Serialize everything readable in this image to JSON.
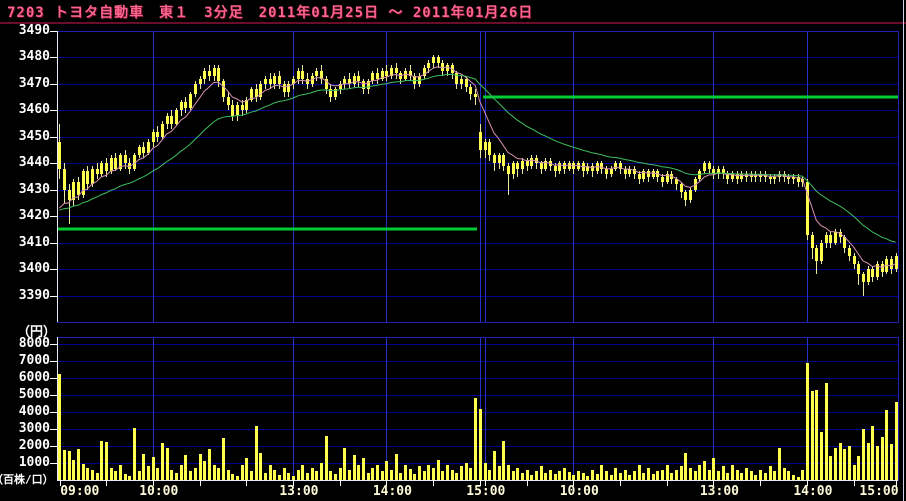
{
  "header": {
    "title": "7203 トヨタ自動車　東１　3分足　2011年01月25日 ～ 2011年01月26日"
  },
  "price_panel": {
    "unit_label": "（円）",
    "y_ticks": [
      3490,
      3480,
      3470,
      3460,
      3450,
      3440,
      3430,
      3420,
      3410,
      3400,
      3390
    ],
    "y_max": 3490,
    "y_min": 3380,
    "ref_lines": [
      {
        "session": "2011-01-25",
        "value": 3415
      },
      {
        "session": "2011-01-26",
        "value": 3465
      }
    ]
  },
  "volume_panel": {
    "unit_label": "（百株/口）",
    "y_ticks": [
      8000,
      7000,
      6000,
      5000,
      4000,
      3000,
      2000,
      1000
    ],
    "y_max": 8400
  },
  "x_axis": {
    "labels": [
      {
        "text": "09:00",
        "bar": 0
      },
      {
        "text": "10:00",
        "bar": 20
      },
      {
        "text": "13:00",
        "bar": 50
      },
      {
        "text": "14:00",
        "bar": 70
      },
      {
        "text": "15:00",
        "bar": 90
      },
      {
        "text": "10:00",
        "bar": 110
      },
      {
        "text": "13:00",
        "bar": 140
      },
      {
        "text": "14:00",
        "bar": 160
      },
      {
        "text": "15:00",
        "bar": 180
      }
    ],
    "minor_tick_bars": [
      10,
      30,
      40,
      60,
      80,
      100,
      120,
      130,
      150,
      170
    ],
    "day2_open_bar": 91
  },
  "colors": {
    "background": "#000000",
    "title_text": "#ff6490",
    "title_rule": "#6b0d2a",
    "axis_text": "#ffffff",
    "time_text": "#fffbd8",
    "grid_h": "#00008f",
    "grid_v": "#2431c8",
    "frame": "#2020b0",
    "axis_line": "#e8e8f8",
    "candle_body": "#ffff4d",
    "candle_wick": "#e8e8a0",
    "volume_bar": "#ffff4d",
    "ref_line": "#00cc33",
    "ma_fast": "#d890b0",
    "ma_slow": "#3fbf5f"
  },
  "chart_data": {
    "type": "candlestick+volume",
    "symbol": "7203",
    "name": "トヨタ自動車",
    "market": "東１",
    "interval": "3分足",
    "date_range": "2011年01月25日～2011年01月26日",
    "bars_per_day": 90,
    "sessions": [
      "09:00-11:00",
      "12:30-15:00"
    ],
    "price_axis": {
      "min": 3380,
      "max": 3490,
      "grid_step": 10
    },
    "volume_axis": {
      "min": 0,
      "max": 8400,
      "grid_step": 1000
    },
    "ma_lines": [
      {
        "name": "ma-fast",
        "type": "ema",
        "period": 7,
        "seed": 3418,
        "color": "#d890b0"
      },
      {
        "name": "ma-slow",
        "type": "ema",
        "period": 26,
        "seed": 3421,
        "color": "#3fbf5f"
      }
    ],
    "candles": [
      [
        3448,
        3455,
        3434,
        3438
      ],
      [
        3438,
        3440,
        3425,
        3430
      ],
      [
        3430,
        3432,
        3417,
        3426
      ],
      [
        3426,
        3434,
        3424,
        3433
      ],
      [
        3433,
        3435,
        3426,
        3428
      ],
      [
        3428,
        3438,
        3427,
        3437
      ],
      [
        3437,
        3439,
        3430,
        3432
      ],
      [
        3432,
        3439,
        3431,
        3438
      ],
      [
        3438,
        3440,
        3434,
        3436
      ],
      [
        3436,
        3441,
        3435,
        3440
      ],
      [
        3440,
        3442,
        3435,
        3437
      ],
      [
        3437,
        3443,
        3436,
        3442
      ],
      [
        3442,
        3444,
        3437,
        3438
      ],
      [
        3438,
        3444,
        3437,
        3443
      ],
      [
        3443,
        3445,
        3438,
        3440
      ],
      [
        3440,
        3442,
        3436,
        3438
      ],
      [
        3438,
        3444,
        3437,
        3443
      ],
      [
        3443,
        3447,
        3442,
        3446
      ],
      [
        3446,
        3448,
        3442,
        3444
      ],
      [
        3444,
        3449,
        3443,
        3448
      ],
      [
        3448,
        3453,
        3446,
        3452
      ],
      [
        3452,
        3454,
        3448,
        3450
      ],
      [
        3450,
        3456,
        3449,
        3455
      ],
      [
        3455,
        3459,
        3453,
        3458
      ],
      [
        3458,
        3460,
        3453,
        3455
      ],
      [
        3455,
        3461,
        3454,
        3460
      ],
      [
        3460,
        3464,
        3458,
        3463
      ],
      [
        3463,
        3465,
        3459,
        3461
      ],
      [
        3461,
        3467,
        3460,
        3466
      ],
      [
        3466,
        3471,
        3465,
        3470
      ],
      [
        3470,
        3473,
        3468,
        3472
      ],
      [
        3472,
        3476,
        3470,
        3475
      ],
      [
        3475,
        3477,
        3471,
        3473
      ],
      [
        3473,
        3477,
        3471,
        3476
      ],
      [
        3476,
        3477,
        3469,
        3471
      ],
      [
        3471,
        3472,
        3463,
        3465
      ],
      [
        3465,
        3467,
        3460,
        3462
      ],
      [
        3462,
        3464,
        3456,
        3458
      ],
      [
        3458,
        3463,
        3456,
        3462
      ],
      [
        3462,
        3464,
        3458,
        3460
      ],
      [
        3460,
        3465,
        3459,
        3464
      ],
      [
        3464,
        3469,
        3463,
        3468
      ],
      [
        3468,
        3470,
        3463,
        3465
      ],
      [
        3465,
        3471,
        3464,
        3470
      ],
      [
        3470,
        3473,
        3468,
        3472
      ],
      [
        3472,
        3474,
        3468,
        3470
      ],
      [
        3470,
        3474,
        3468,
        3473
      ],
      [
        3473,
        3475,
        3468,
        3470
      ],
      [
        3470,
        3471,
        3465,
        3467
      ],
      [
        3467,
        3471,
        3465,
        3470
      ],
      [
        3470,
        3473,
        3468,
        3472
      ],
      [
        3472,
        3476,
        3470,
        3475
      ],
      [
        3475,
        3477,
        3470,
        3472
      ],
      [
        3472,
        3474,
        3468,
        3470
      ],
      [
        3470,
        3474,
        3469,
        3473
      ],
      [
        3473,
        3476,
        3471,
        3475
      ],
      [
        3475,
        3477,
        3470,
        3472
      ],
      [
        3472,
        3473,
        3466,
        3468
      ],
      [
        3468,
        3470,
        3463,
        3465
      ],
      [
        3465,
        3469,
        3464,
        3468
      ],
      [
        3468,
        3471,
        3466,
        3470
      ],
      [
        3470,
        3473,
        3468,
        3472
      ],
      [
        3472,
        3474,
        3468,
        3470
      ],
      [
        3470,
        3474,
        3469,
        3473
      ],
      [
        3473,
        3475,
        3469,
        3471
      ],
      [
        3471,
        3472,
        3466,
        3468
      ],
      [
        3468,
        3472,
        3466,
        3471
      ],
      [
        3471,
        3475,
        3470,
        3474
      ],
      [
        3474,
        3476,
        3470,
        3472
      ],
      [
        3472,
        3476,
        3471,
        3475
      ],
      [
        3475,
        3477,
        3471,
        3473
      ],
      [
        3473,
        3477,
        3472,
        3476
      ],
      [
        3476,
        3478,
        3472,
        3474
      ],
      [
        3474,
        3475,
        3470,
        3472
      ],
      [
        3472,
        3476,
        3471,
        3475
      ],
      [
        3475,
        3477,
        3471,
        3473
      ],
      [
        3473,
        3474,
        3468,
        3470
      ],
      [
        3470,
        3474,
        3469,
        3473
      ],
      [
        3473,
        3477,
        3472,
        3476
      ],
      [
        3476,
        3479,
        3474,
        3478
      ],
      [
        3478,
        3481,
        3476,
        3480
      ],
      [
        3480,
        3481,
        3476,
        3478
      ],
      [
        3478,
        3479,
        3473,
        3475
      ],
      [
        3475,
        3478,
        3473,
        3477
      ],
      [
        3477,
        3478,
        3472,
        3474
      ],
      [
        3474,
        3475,
        3468,
        3470
      ],
      [
        3470,
        3473,
        3468,
        3472
      ],
      [
        3472,
        3473,
        3467,
        3469
      ],
      [
        3469,
        3470,
        3464,
        3466
      ],
      [
        3466,
        3468,
        3462,
        3465
      ],
      [
        3452,
        3455,
        3442,
        3445
      ],
      [
        3445,
        3449,
        3442,
        3448
      ],
      [
        3448,
        3449,
        3441,
        3443
      ],
      [
        3443,
        3444,
        3437,
        3440
      ],
      [
        3440,
        3444,
        3438,
        3443
      ],
      [
        3443,
        3444,
        3437,
        3439
      ],
      [
        3439,
        3440,
        3428,
        3436
      ],
      [
        3436,
        3441,
        3434,
        3440
      ],
      [
        3440,
        3441,
        3435,
        3438
      ],
      [
        3438,
        3442,
        3436,
        3441
      ],
      [
        3441,
        3442,
        3437,
        3439
      ],
      [
        3439,
        3443,
        3438,
        3442
      ],
      [
        3442,
        3443,
        3438,
        3440
      ],
      [
        3440,
        3441,
        3436,
        3438
      ],
      [
        3438,
        3442,
        3437,
        3441
      ],
      [
        3441,
        3442,
        3437,
        3439
      ],
      [
        3439,
        3440,
        3435,
        3437
      ],
      [
        3437,
        3441,
        3436,
        3440
      ],
      [
        3440,
        3441,
        3436,
        3438
      ],
      [
        3438,
        3441,
        3437,
        3440
      ],
      [
        3440,
        3441,
        3436,
        3438
      ],
      [
        3438,
        3441,
        3437,
        3440
      ],
      [
        3440,
        3441,
        3435,
        3437
      ],
      [
        3437,
        3440,
        3436,
        3439
      ],
      [
        3439,
        3440,
        3435,
        3437
      ],
      [
        3437,
        3441,
        3436,
        3440
      ],
      [
        3440,
        3441,
        3436,
        3438
      ],
      [
        3438,
        3439,
        3434,
        3436
      ],
      [
        3436,
        3439,
        3435,
        3438
      ],
      [
        3438,
        3441,
        3437,
        3440
      ],
      [
        3440,
        3441,
        3436,
        3438
      ],
      [
        3438,
        3439,
        3434,
        3436
      ],
      [
        3436,
        3439,
        3435,
        3438
      ],
      [
        3438,
        3439,
        3434,
        3436
      ],
      [
        3436,
        3437,
        3432,
        3434
      ],
      [
        3434,
        3438,
        3433,
        3437
      ],
      [
        3437,
        3438,
        3433,
        3435
      ],
      [
        3435,
        3438,
        3434,
        3437
      ],
      [
        3437,
        3438,
        3433,
        3435
      ],
      [
        3435,
        3436,
        3431,
        3433
      ],
      [
        3433,
        3437,
        3432,
        3436
      ],
      [
        3436,
        3437,
        3432,
        3434
      ],
      [
        3434,
        3435,
        3430,
        3432
      ],
      [
        3432,
        3433,
        3427,
        3429
      ],
      [
        3429,
        3430,
        3424,
        3426
      ],
      [
        3426,
        3431,
        3425,
        3430
      ],
      [
        3430,
        3435,
        3429,
        3434
      ],
      [
        3434,
        3438,
        3433,
        3437
      ],
      [
        3437,
        3441,
        3436,
        3440
      ],
      [
        3440,
        3441,
        3436,
        3438
      ],
      [
        3438,
        3439,
        3434,
        3436
      ],
      [
        3436,
        3439,
        3434,
        3438
      ],
      [
        3438,
        3439,
        3434,
        3436
      ],
      [
        3436,
        3437,
        3432,
        3434
      ],
      [
        3434,
        3437,
        3433,
        3436
      ],
      [
        3436,
        3437,
        3432,
        3434
      ],
      [
        3434,
        3437,
        3433,
        3436
      ],
      [
        3436,
        3437,
        3433,
        3435
      ],
      [
        3435,
        3437,
        3433,
        3436
      ],
      [
        3436,
        3437,
        3433,
        3435
      ],
      [
        3435,
        3437,
        3433,
        3436
      ],
      [
        3436,
        3437,
        3433,
        3435
      ],
      [
        3435,
        3436,
        3432,
        3434
      ],
      [
        3434,
        3436,
        3432,
        3435
      ],
      [
        3435,
        3437,
        3433,
        3436
      ],
      [
        3436,
        3437,
        3433,
        3435
      ],
      [
        3435,
        3436,
        3432,
        3434
      ],
      [
        3434,
        3436,
        3432,
        3435
      ],
      [
        3435,
        3436,
        3431,
        3433
      ],
      [
        3433,
        3435,
        3431,
        3434
      ],
      [
        3433,
        3434,
        3411,
        3413
      ],
      [
        3413,
        3414,
        3404,
        3408
      ],
      [
        3408,
        3409,
        3398,
        3403
      ],
      [
        3403,
        3411,
        3402,
        3410
      ],
      [
        3410,
        3414,
        3408,
        3413
      ],
      [
        3413,
        3414,
        3408,
        3410
      ],
      [
        3410,
        3415,
        3409,
        3414
      ],
      [
        3414,
        3415,
        3410,
        3412
      ],
      [
        3412,
        3413,
        3406,
        3408
      ],
      [
        3408,
        3409,
        3403,
        3405
      ],
      [
        3405,
        3406,
        3400,
        3402
      ],
      [
        3402,
        3403,
        3394,
        3398
      ],
      [
        3398,
        3399,
        3390,
        3395
      ],
      [
        3395,
        3401,
        3394,
        3400
      ],
      [
        3400,
        3401,
        3395,
        3397
      ],
      [
        3397,
        3403,
        3396,
        3402
      ],
      [
        3402,
        3403,
        3397,
        3399
      ],
      [
        3399,
        3405,
        3398,
        3404
      ],
      [
        3404,
        3405,
        3398,
        3400
      ],
      [
        3400,
        3406,
        3399,
        3405
      ]
    ],
    "volumes": [
      6200,
      1750,
      1700,
      1150,
      1800,
      950,
      700,
      600,
      400,
      2300,
      2250,
      700,
      500,
      900,
      350,
      250,
      3050,
      500,
      1500,
      800,
      1350,
      700,
      2150,
      1900,
      600,
      400,
      900,
      1450,
      500,
      700,
      1500,
      1100,
      1850,
      900,
      700,
      2450,
      600,
      350,
      250,
      900,
      1300,
      500,
      3200,
      1600,
      400,
      900,
      600,
      300,
      700,
      400,
      250,
      600,
      900,
      400,
      700,
      500,
      1000,
      2600,
      500,
      350,
      700,
      1900,
      600,
      1450,
      900,
      1300,
      400,
      700,
      900,
      500,
      1100,
      600,
      1500,
      400,
      900,
      650,
      350,
      800,
      550,
      900,
      700,
      1200,
      500,
      900,
      600,
      400,
      800,
      1000,
      700,
      4800,
      4200,
      1000,
      600,
      1700,
      800,
      2300,
      900,
      500,
      700,
      400,
      600,
      300,
      500,
      800,
      400,
      600,
      350,
      500,
      700,
      450,
      300,
      500,
      400,
      250,
      600,
      350,
      900,
      500,
      300,
      700,
      400,
      600,
      300,
      500,
      900,
      400,
      700,
      350,
      500,
      600,
      900,
      400,
      600,
      800,
      1600,
      700,
      500,
      900,
      1100,
      600,
      1300,
      500,
      800,
      400,
      900,
      600,
      400,
      700,
      500,
      300,
      600,
      400,
      800,
      500,
      1900,
      700,
      500,
      300,
      200,
      600,
      6900,
      5200,
      5300,
      2800,
      5700,
      1400,
      1900,
      2200,
      1800,
      2000,
      900,
      1400,
      3000,
      2200,
      3200,
      2000,
      2500,
      4100,
      2100,
      4600
    ]
  }
}
